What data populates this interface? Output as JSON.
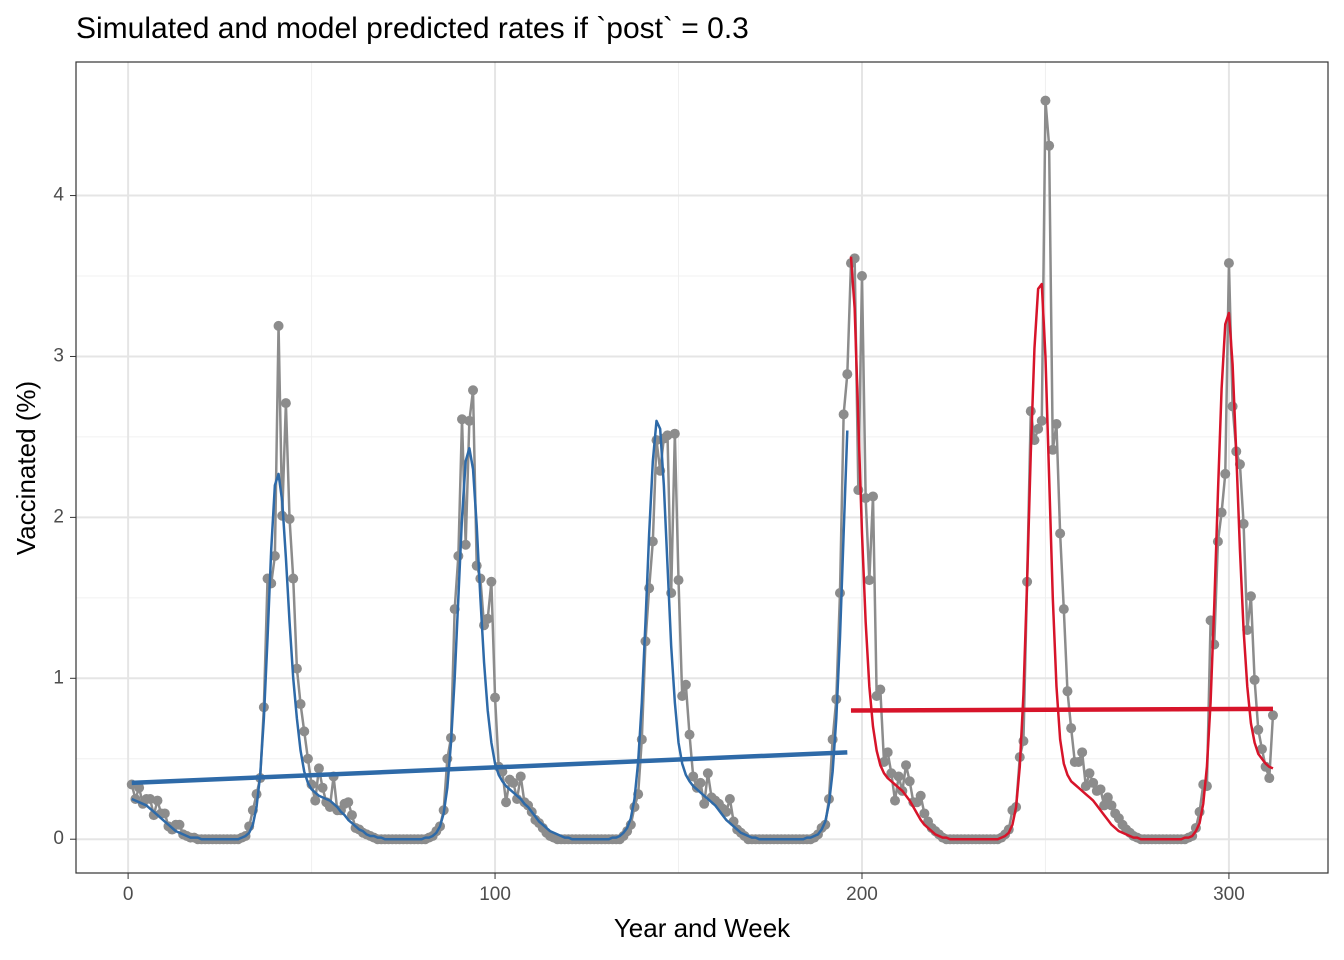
{
  "chart_data": {
    "type": "line",
    "title": "Simulated and model predicted rates if `post` = 0.3",
    "x_label": "Year and Week",
    "y_label": "Vaccinated (%)",
    "xlim": [
      -14.2,
      327
    ],
    "ylim": [
      -0.21,
      4.83
    ],
    "xticks": [
      0,
      100,
      200,
      300
    ],
    "yticks": [
      0,
      1,
      2,
      3,
      4
    ],
    "grid": true,
    "series": [
      {
        "color": "#8c8c8c",
        "markers": true,
        "line_width": 2.5,
        "x": [
          1,
          2,
          3,
          4,
          5,
          6,
          7,
          8,
          9,
          10,
          11,
          12,
          13,
          14,
          15,
          16,
          17,
          18,
          19,
          20,
          21,
          22,
          23,
          24,
          25,
          26,
          27,
          28,
          29,
          30,
          31,
          32,
          33,
          34,
          35,
          36,
          37,
          38,
          39,
          40,
          41,
          42,
          43,
          44,
          45,
          46,
          47,
          48,
          49,
          50,
          51,
          52,
          53,
          54,
          55,
          56,
          57,
          58,
          59,
          60,
          61,
          62,
          63,
          64,
          65,
          66,
          67,
          68,
          69,
          70,
          71,
          72,
          73,
          74,
          75,
          76,
          77,
          78,
          79,
          80,
          81,
          82,
          83,
          84,
          85,
          86,
          87,
          88,
          89,
          90,
          91,
          92,
          93,
          94,
          95,
          96,
          97,
          98,
          99,
          100,
          101,
          102,
          103,
          104,
          105,
          106,
          107,
          108,
          109,
          110,
          111,
          112,
          113,
          114,
          115,
          116,
          117,
          118,
          119,
          120,
          121,
          122,
          123,
          124,
          125,
          126,
          127,
          128,
          129,
          130,
          131,
          132,
          133,
          134,
          135,
          136,
          137,
          138,
          139,
          140,
          141,
          142,
          143,
          144,
          145,
          146,
          147,
          148,
          149,
          150,
          151,
          152,
          153,
          154,
          155,
          156,
          157,
          158,
          159,
          160,
          161,
          162,
          163,
          164,
          165,
          166,
          167,
          168,
          169,
          170,
          171,
          172,
          173,
          174,
          175,
          176,
          177,
          178,
          179,
          180,
          181,
          182,
          183,
          184,
          185,
          186,
          187,
          188,
          189,
          190,
          191,
          192,
          193,
          194,
          195,
          196,
          197,
          198,
          199,
          200,
          201,
          202,
          203,
          204,
          205,
          206,
          207,
          208,
          209,
          210,
          211,
          212,
          213,
          214,
          215,
          216,
          217,
          218,
          219,
          220,
          221,
          222,
          223,
          224,
          225,
          226,
          227,
          228,
          229,
          230,
          231,
          232,
          233,
          234,
          235,
          236,
          237,
          238,
          239,
          240,
          241,
          242,
          243,
          244,
          245,
          246,
          247,
          248,
          249,
          250,
          251,
          252,
          253,
          254,
          255,
          256,
          257,
          258,
          259,
          260,
          261,
          262,
          263,
          264,
          265,
          266,
          267,
          268,
          269,
          270,
          271,
          272,
          273,
          274,
          275,
          276,
          277,
          278,
          279,
          280,
          281,
          282,
          283,
          284,
          285,
          286,
          287,
          288,
          289,
          290,
          291,
          292,
          293,
          294,
          295,
          296,
          297,
          298,
          299,
          300,
          301,
          302,
          303,
          304,
          305,
          306,
          307,
          308,
          309,
          310,
          311,
          312
        ],
        "values": [
          0.34,
          0.25,
          0.32,
          0.22,
          0.25,
          0.25,
          0.15,
          0.24,
          0.16,
          0.16,
          0.08,
          0.06,
          0.09,
          0.09,
          0.03,
          0.02,
          0.01,
          0.01,
          0,
          0,
          0,
          0,
          0,
          0,
          0,
          0,
          0,
          0,
          0,
          0,
          0.01,
          0.02,
          0.08,
          0.18,
          0.28,
          0.38,
          0.82,
          1.62,
          1.59,
          1.76,
          3.19,
          2.01,
          2.71,
          1.99,
          1.62,
          1.06,
          0.84,
          0.67,
          0.5,
          0.34,
          0.24,
          0.44,
          0.32,
          0.23,
          0.2,
          0.39,
          0.18,
          0.18,
          0.22,
          0.23,
          0.15,
          0.07,
          0.06,
          0.04,
          0.03,
          0.02,
          0.01,
          0,
          0,
          0,
          0,
          0,
          0,
          0,
          0,
          0,
          0,
          0,
          0,
          0,
          0,
          0.01,
          0.02,
          0.05,
          0.08,
          0.18,
          0.5,
          0.63,
          1.43,
          1.76,
          2.61,
          1.83,
          2.6,
          2.79,
          1.7,
          1.62,
          1.33,
          1.37,
          1.6,
          0.88,
          0.45,
          0.42,
          0.23,
          0.37,
          0.35,
          0.25,
          0.39,
          0.23,
          0.21,
          0.17,
          0.12,
          0.1,
          0.07,
          0.04,
          0.02,
          0.01,
          0,
          0,
          0,
          0,
          0,
          0,
          0,
          0,
          0,
          0,
          0,
          0,
          0,
          0,
          0,
          0,
          0,
          0,
          0.02,
          0.05,
          0.09,
          0.2,
          0.28,
          0.62,
          1.23,
          1.56,
          1.85,
          2.48,
          2.29,
          2.49,
          2.51,
          1.53,
          2.52,
          1.61,
          0.89,
          0.96,
          0.65,
          0.39,
          0.32,
          0.35,
          0.22,
          0.41,
          0.26,
          0.24,
          0.22,
          0.19,
          0.17,
          0.25,
          0.11,
          0.06,
          0.04,
          0.02,
          0,
          0,
          0,
          0,
          0,
          0,
          0,
          0,
          0,
          0,
          0,
          0,
          0,
          0,
          0,
          0,
          0,
          0,
          0.01,
          0.03,
          0.07,
          0.09,
          0.25,
          0.62,
          0.87,
          1.53,
          2.64,
          2.89,
          3.58,
          3.61,
          2.17,
          3.5,
          2.12,
          1.61,
          2.13,
          0.89,
          0.93,
          0.48,
          0.54,
          0.41,
          0.24,
          0.39,
          0.3,
          0.46,
          0.36,
          0.23,
          0.23,
          0.27,
          0.16,
          0.11,
          0.07,
          0.05,
          0.03,
          0.01,
          0,
          0,
          0,
          0,
          0,
          0,
          0,
          0,
          0,
          0,
          0,
          0,
          0,
          0,
          0,
          0.01,
          0.03,
          0.06,
          0.18,
          0.2,
          0.51,
          0.61,
          1.6,
          2.66,
          2.48,
          2.55,
          2.6,
          4.59,
          4.31,
          2.42,
          2.58,
          1.9,
          1.43,
          0.92,
          0.69,
          0.48,
          0.48,
          0.54,
          0.33,
          0.41,
          0.35,
          0.3,
          0.31,
          0.21,
          0.26,
          0.21,
          0.16,
          0.13,
          0.09,
          0.06,
          0.04,
          0.02,
          0.01,
          0,
          0,
          0,
          0,
          0,
          0,
          0,
          0,
          0,
          0,
          0,
          0,
          0,
          0.01,
          0.02,
          0.07,
          0.17,
          0.34,
          0.33,
          1.36,
          1.21,
          1.85,
          2.03,
          2.27,
          3.58,
          2.69,
          2.41,
          2.33,
          1.96,
          1.3,
          1.51,
          0.99,
          0.68,
          0.56,
          0.45,
          0.38,
          0.77
        ]
      },
      {
        "color": "#2e6aa8",
        "line_width": 2.5,
        "x": [
          1,
          2,
          3,
          4,
          5,
          6,
          7,
          8,
          9,
          10,
          11,
          12,
          13,
          14,
          15,
          16,
          17,
          18,
          19,
          20,
          21,
          22,
          23,
          24,
          25,
          26,
          27,
          28,
          29,
          30,
          31,
          32,
          33,
          34,
          35,
          36,
          37,
          38,
          39,
          40,
          41,
          42,
          43,
          44,
          45,
          46,
          47,
          48,
          49,
          50,
          51,
          52,
          53,
          54,
          55,
          56,
          57,
          58,
          59,
          60,
          61,
          62,
          63,
          64,
          65,
          66,
          67,
          68,
          69,
          70,
          71,
          72,
          73,
          74,
          75,
          76,
          77,
          78,
          79,
          80,
          81,
          82,
          83,
          84,
          85,
          86,
          87,
          88,
          89,
          90,
          91,
          92,
          93,
          94,
          95,
          96,
          97,
          98,
          99,
          100,
          101,
          102,
          103,
          104,
          105,
          106,
          107,
          108,
          109,
          110,
          111,
          112,
          113,
          114,
          115,
          116,
          117,
          118,
          119,
          120,
          121,
          122,
          123,
          124,
          125,
          126,
          127,
          128,
          129,
          130,
          131,
          132,
          133,
          134,
          135,
          136,
          137,
          138,
          139,
          140,
          141,
          142,
          143,
          144,
          145,
          146,
          147,
          148,
          149,
          150,
          151,
          152,
          153,
          154,
          155,
          156,
          157,
          158,
          159,
          160,
          161,
          162,
          163,
          164,
          165,
          166,
          167,
          168,
          169,
          170,
          171,
          172,
          173,
          174,
          175,
          176,
          177,
          178,
          179,
          180,
          181,
          182,
          183,
          184,
          185,
          186,
          187,
          188,
          189,
          190,
          191,
          192,
          193,
          194,
          195,
          196
        ],
        "values": [
          0.25,
          0.24,
          0.23,
          0.22,
          0.21,
          0.19,
          0.17,
          0.15,
          0.13,
          0.11,
          0.09,
          0.07,
          0.05,
          0.04,
          0.03,
          0.02,
          0.01,
          0.01,
          0.01,
          0,
          0,
          0,
          0,
          0,
          0,
          0,
          0,
          0,
          0,
          0,
          0.01,
          0.02,
          0.04,
          0.09,
          0.2,
          0.4,
          0.75,
          1.25,
          1.8,
          2.2,
          2.27,
          2.1,
          1.75,
          1.35,
          1,
          0.75,
          0.55,
          0.42,
          0.35,
          0.31,
          0.29,
          0.27,
          0.26,
          0.25,
          0.24,
          0.22,
          0.2,
          0.17,
          0.15,
          0.12,
          0.1,
          0.08,
          0.06,
          0.05,
          0.03,
          0.02,
          0.02,
          0.01,
          0.01,
          0,
          0,
          0,
          0,
          0,
          0,
          0,
          0,
          0,
          0,
          0,
          0.01,
          0.01,
          0.02,
          0.04,
          0.08,
          0.16,
          0.32,
          0.6,
          1,
          1.5,
          2,
          2.35,
          2.43,
          2.3,
          1.95,
          1.5,
          1.1,
          0.8,
          0.6,
          0.47,
          0.4,
          0.36,
          0.33,
          0.31,
          0.29,
          0.27,
          0.25,
          0.22,
          0.2,
          0.17,
          0.14,
          0.11,
          0.09,
          0.07,
          0.05,
          0.04,
          0.03,
          0.02,
          0.01,
          0.01,
          0,
          0,
          0,
          0,
          0,
          0,
          0,
          0,
          0,
          0,
          0,
          0.01,
          0.01,
          0.02,
          0.04,
          0.07,
          0.13,
          0.25,
          0.48,
          0.85,
          1.35,
          1.9,
          2.35,
          2.6,
          2.55,
          2.2,
          1.7,
          1.2,
          0.85,
          0.6,
          0.47,
          0.4,
          0.36,
          0.33,
          0.31,
          0.29,
          0.27,
          0.25,
          0.23,
          0.21,
          0.18,
          0.15,
          0.12,
          0.1,
          0.08,
          0.06,
          0.04,
          0.03,
          0.02,
          0.01,
          0.01,
          0,
          0,
          0,
          0,
          0,
          0,
          0,
          0,
          0,
          0,
          0,
          0,
          0,
          0.01,
          0.01,
          0.02,
          0.03,
          0.06,
          0.11,
          0.22,
          0.42,
          0.75,
          1.25,
          1.9,
          2.54
        ]
      },
      {
        "color": "#d7142a",
        "line_width": 2.5,
        "x": [
          197,
          198,
          199,
          200,
          201,
          202,
          203,
          204,
          205,
          206,
          207,
          208,
          209,
          210,
          211,
          212,
          213,
          214,
          215,
          216,
          217,
          218,
          219,
          220,
          221,
          222,
          223,
          224,
          225,
          226,
          227,
          228,
          229,
          230,
          231,
          232,
          233,
          234,
          235,
          236,
          237,
          238,
          239,
          240,
          241,
          242,
          243,
          244,
          245,
          246,
          247,
          248,
          249,
          250,
          251,
          252,
          253,
          254,
          255,
          256,
          257,
          258,
          259,
          260,
          261,
          262,
          263,
          264,
          265,
          266,
          267,
          268,
          269,
          270,
          271,
          272,
          273,
          274,
          275,
          276,
          277,
          278,
          279,
          280,
          281,
          282,
          283,
          284,
          285,
          286,
          287,
          288,
          289,
          290,
          291,
          292,
          293,
          294,
          295,
          296,
          297,
          298,
          299,
          300,
          301,
          302,
          303,
          304,
          305,
          306,
          307,
          308,
          309,
          310,
          311,
          312
        ],
        "values": [
          3.62,
          3.3,
          2.6,
          1.9,
          1.35,
          0.95,
          0.7,
          0.55,
          0.46,
          0.41,
          0.38,
          0.36,
          0.34,
          0.32,
          0.3,
          0.27,
          0.24,
          0.2,
          0.16,
          0.12,
          0.09,
          0.07,
          0.05,
          0.03,
          0.02,
          0.01,
          0.01,
          0,
          0,
          0,
          0,
          0,
          0,
          0,
          0,
          0,
          0,
          0,
          0,
          0,
          0,
          0.01,
          0.02,
          0.04,
          0.09,
          0.2,
          0.45,
          0.9,
          1.6,
          2.4,
          3.05,
          3.42,
          3.45,
          3,
          2.25,
          1.5,
          0.95,
          0.62,
          0.47,
          0.4,
          0.36,
          0.34,
          0.32,
          0.3,
          0.28,
          0.26,
          0.24,
          0.21,
          0.18,
          0.15,
          0.12,
          0.09,
          0.07,
          0.05,
          0.04,
          0.03,
          0.02,
          0.01,
          0.01,
          0,
          0,
          0,
          0,
          0,
          0,
          0,
          0,
          0,
          0,
          0,
          0,
          0.01,
          0.01,
          0.02,
          0.05,
          0.1,
          0.22,
          0.45,
          0.85,
          1.45,
          2.15,
          2.8,
          3.2,
          3.27,
          2.95,
          2.4,
          1.8,
          1.3,
          0.95,
          0.72,
          0.6,
          0.53,
          0.5,
          0.47,
          0.45,
          0.44
        ]
      },
      {
        "color": "#2e6aa8",
        "line_width": 4.5,
        "x": [
          1,
          196
        ],
        "values": [
          0.35,
          0.54
        ]
      },
      {
        "color": "#d7142a",
        "line_width": 4.5,
        "x": [
          197,
          312
        ],
        "values": [
          0.8,
          0.81
        ]
      }
    ]
  }
}
